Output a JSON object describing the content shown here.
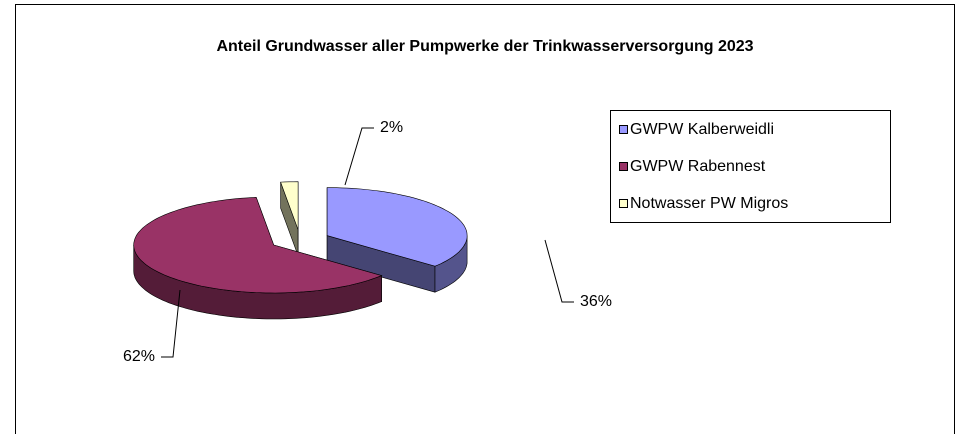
{
  "chart_data": {
    "type": "pie3d",
    "title": "Anteil Grundwasser aller Pumpwerke der Trinkwasserversorgung 2023",
    "categories": [
      "GWPW Kalberweidli",
      "GWPW Rabennest",
      "Notwasser PW Migros"
    ],
    "values": [
      36,
      62,
      2
    ],
    "value_labels": [
      "36%",
      "62%",
      "2%"
    ],
    "colors": [
      "#9999ff",
      "#993366",
      "#ffffcc"
    ],
    "legend": "right"
  }
}
